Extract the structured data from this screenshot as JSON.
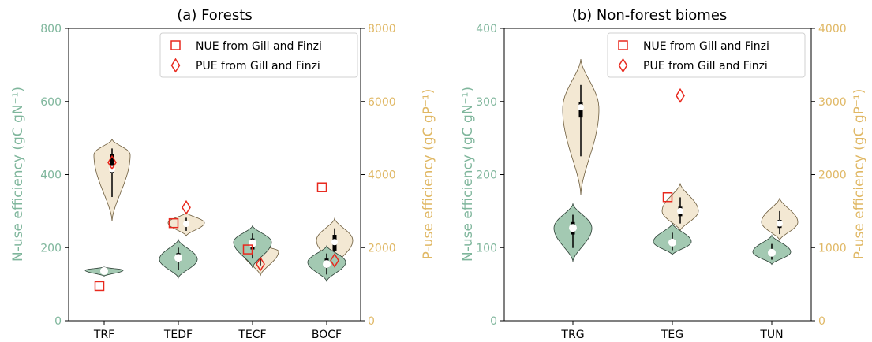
{
  "colors": {
    "n_axis": "#7fb69c",
    "p_axis": "#e0b865",
    "n_fill": "#a3c9b2",
    "p_fill": "#f3e8d3",
    "marker": "#e8291e"
  },
  "panels": [
    {
      "title": "(a) Forests",
      "ylabel_left": "N-use efficiency (gC gN⁻¹)",
      "ylabel_right": "P-use efficiency (gC gP⁻¹)",
      "yticks_left": [
        "0",
        "200",
        "400",
        "600",
        "800"
      ],
      "yticks_right": [
        "0",
        "2000",
        "4000",
        "6000",
        "8000"
      ],
      "xticks": [
        "TRF",
        "TEDF",
        "TECF",
        "BOCF"
      ],
      "legend": [
        "NUE from Gill and Finzi",
        "PUE from Gill and Finzi"
      ]
    },
    {
      "title": "(b) Non-forest biomes",
      "ylabel_left": "N-use efficiency (gC gN⁻¹)",
      "ylabel_right": "P-use efficiency (gC gP⁻¹)",
      "yticks_left": [
        "0",
        "100",
        "200",
        "300",
        "400"
      ],
      "yticks_right": [
        "0",
        "1000",
        "2000",
        "3000",
        "4000"
      ],
      "xticks": [
        "TRG",
        "TEG",
        "TUN"
      ],
      "legend": [
        "NUE from Gill and Finzi",
        "PUE from Gill and Finzi"
      ]
    }
  ],
  "chart_data": [
    {
      "type": "violin",
      "title": "(a) Forests",
      "categories": [
        "TRF",
        "TEDF",
        "TECF",
        "BOCF"
      ],
      "ylim_left": [
        0,
        800
      ],
      "ylim_right": [
        0,
        8000
      ],
      "nue_violins": [
        {
          "category": "TRF",
          "min": 122,
          "max": 147,
          "q1": 133,
          "median": 136,
          "q3": 139,
          "mode": 138
        },
        {
          "category": "TEDF",
          "min": 117,
          "max": 222,
          "q1": 160,
          "median": 172,
          "q3": 185,
          "mode": 168
        },
        {
          "category": "TECF",
          "min": 145,
          "max": 260,
          "q1": 195,
          "median": 212,
          "q3": 225,
          "mode": 215
        },
        {
          "category": "BOCF",
          "min": 108,
          "max": 205,
          "q1": 145,
          "median": 155,
          "q3": 170,
          "mode": 160
        }
      ],
      "pue_violins": [
        {
          "category": "TRF",
          "min": 2720,
          "max": 4960,
          "q1": 4050,
          "median": 4150,
          "q3": 4550,
          "mode": 4550
        },
        {
          "category": "TEDF",
          "min": 2320,
          "max": 2960,
          "q1": 2600,
          "median": 2650,
          "q3": 2720,
          "mode": 2680
        },
        {
          "category": "TECF",
          "min": 1230,
          "max": 2080,
          "q1": 1800,
          "median": 1880,
          "q3": 1950,
          "mode": 1900
        },
        {
          "category": "BOCF",
          "min": 1440,
          "max": 2800,
          "q1": 1920,
          "median": 2150,
          "q3": 2350,
          "mode": 2200
        }
      ],
      "nue_gill_finzi": [
        {
          "category": "TRF",
          "value": 95
        },
        {
          "category": "TEDF",
          "value": 267
        },
        {
          "category": "TECF",
          "value": 195
        },
        {
          "category": "BOCF",
          "value": 365
        }
      ],
      "pue_gill_finzi": [
        {
          "category": "TRF",
          "value": 4330
        },
        {
          "category": "TEDF",
          "value": 3100
        },
        {
          "category": "TECF",
          "value": 1550
        },
        {
          "category": "BOCF",
          "value": 1650
        }
      ]
    },
    {
      "type": "violin",
      "title": "(b) Non-forest biomes",
      "categories": [
        "TRG",
        "TEG",
        "TUN"
      ],
      "ylim_left": [
        0,
        400
      ],
      "ylim_right": [
        0,
        4000
      ],
      "nue_violins": [
        {
          "category": "TRG",
          "min": 81,
          "max": 160,
          "q1": 118,
          "median": 127,
          "q3": 135,
          "mode": 127
        },
        {
          "category": "TEG",
          "min": 90,
          "max": 133,
          "q1": 103,
          "median": 107,
          "q3": 112,
          "mode": 108
        },
        {
          "category": "TUN",
          "min": 77,
          "max": 117,
          "q1": 90,
          "median": 93,
          "q3": 97,
          "mode": 94
        }
      ],
      "pue_violins": [
        {
          "category": "TRG",
          "min": 1720,
          "max": 3580,
          "q1": 2780,
          "median": 2920,
          "q3": 2990,
          "mode": 2900
        },
        {
          "category": "TEG",
          "min": 1230,
          "max": 1880,
          "q1": 1430,
          "median": 1500,
          "q3": 1560,
          "mode": 1500
        },
        {
          "category": "TUN",
          "min": 1100,
          "max": 1680,
          "q1": 1270,
          "median": 1330,
          "q3": 1380,
          "mode": 1350
        }
      ],
      "nue_gill_finzi": [
        {
          "category": "TEG",
          "value": 169
        }
      ],
      "pue_gill_finzi": [
        {
          "category": "TEG",
          "value": 3080
        }
      ]
    }
  ]
}
